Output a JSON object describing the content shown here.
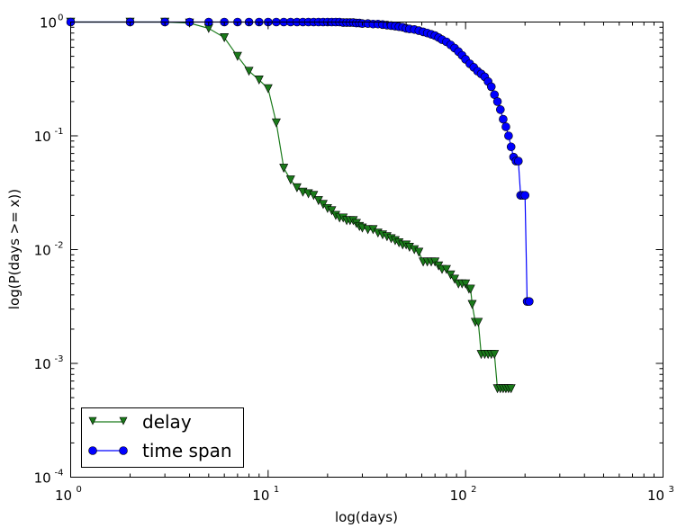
{
  "chart_data": {
    "type": "line",
    "xscale": "log",
    "yscale": "log",
    "xlim": [
      1,
      1000
    ],
    "ylim": [
      0.0001,
      1
    ],
    "xlabel": "log(days)",
    "ylabel": "log(P(days >= x))",
    "xticks": [
      {
        "value": 1,
        "base": "10",
        "exp": "0"
      },
      {
        "value": 10,
        "base": "10",
        "exp": "1"
      },
      {
        "value": 100,
        "base": "10",
        "exp": "2"
      },
      {
        "value": 1000,
        "base": "10",
        "exp": "3"
      }
    ],
    "yticks": [
      {
        "value": 1,
        "base": "10",
        "exp": "0"
      },
      {
        "value": 0.1,
        "base": "10",
        "exp": "-1"
      },
      {
        "value": 0.01,
        "base": "10",
        "exp": "-2"
      },
      {
        "value": 0.001,
        "base": "10",
        "exp": "-3"
      },
      {
        "value": 0.0001,
        "base": "10",
        "exp": "-4"
      }
    ],
    "legend_position": "lower-left",
    "series": [
      {
        "name": "delay",
        "color": "#1a7a1a",
        "marker": "triangle-down",
        "x": [
          1,
          2,
          3,
          4,
          5,
          6,
          7,
          8,
          9,
          10,
          11,
          12,
          13,
          14,
          15,
          16,
          17,
          18,
          19,
          20,
          21,
          22,
          23,
          24,
          25,
          26,
          27,
          28,
          29,
          30,
          32,
          34,
          36,
          38,
          40,
          42,
          44,
          46,
          48,
          50,
          52,
          55,
          58,
          61,
          64,
          67,
          70,
          73,
          76,
          80,
          84,
          88,
          92,
          96,
          100,
          104,
          106,
          108,
          112,
          116,
          120,
          125,
          130,
          135,
          140,
          145,
          150,
          155,
          160,
          165,
          170
        ],
        "y": [
          1,
          1,
          1,
          0.98,
          0.88,
          0.73,
          0.5,
          0.37,
          0.31,
          0.26,
          0.13,
          0.052,
          0.041,
          0.035,
          0.032,
          0.031,
          0.03,
          0.027,
          0.025,
          0.023,
          0.022,
          0.02,
          0.019,
          0.019,
          0.018,
          0.018,
          0.018,
          0.017,
          0.016,
          0.0155,
          0.015,
          0.015,
          0.014,
          0.0135,
          0.013,
          0.0125,
          0.012,
          0.0115,
          0.011,
          0.011,
          0.0105,
          0.01,
          0.0095,
          0.0078,
          0.0078,
          0.0078,
          0.0078,
          0.0072,
          0.0067,
          0.0067,
          0.006,
          0.0055,
          0.005,
          0.005,
          0.005,
          0.0045,
          0.0045,
          0.0033,
          0.0023,
          0.0023,
          0.0012,
          0.0012,
          0.0012,
          0.0012,
          0.0012,
          0.0006,
          0.0006,
          0.0006,
          0.0006,
          0.0006,
          0.0006
        ]
      },
      {
        "name": "time span",
        "color": "#0000ff",
        "marker": "circle",
        "x": [
          1,
          2,
          3,
          4,
          5,
          6,
          7,
          8,
          9,
          10,
          11,
          12,
          13,
          14,
          15,
          16,
          17,
          18,
          19,
          20,
          21,
          22,
          23,
          24,
          25,
          26,
          27,
          28,
          29,
          30,
          32,
          34,
          36,
          38,
          40,
          42,
          44,
          46,
          48,
          50,
          52,
          55,
          58,
          61,
          64,
          67,
          70,
          73,
          76,
          80,
          84,
          88,
          92,
          96,
          100,
          105,
          110,
          115,
          120,
          125,
          130,
          135,
          140,
          145,
          150,
          155,
          160,
          165,
          170,
          175,
          180,
          185,
          190,
          195,
          200,
          205,
          210
        ],
        "y": [
          1,
          1,
          1,
          1,
          1,
          1,
          1,
          1,
          1,
          1,
          1,
          1,
          1,
          1,
          1,
          1,
          1,
          1,
          1,
          1,
          1,
          1,
          1,
          0.99,
          0.99,
          0.99,
          0.99,
          0.98,
          0.98,
          0.97,
          0.97,
          0.96,
          0.96,
          0.95,
          0.94,
          0.93,
          0.92,
          0.91,
          0.9,
          0.88,
          0.87,
          0.86,
          0.84,
          0.82,
          0.8,
          0.78,
          0.76,
          0.73,
          0.7,
          0.67,
          0.63,
          0.59,
          0.55,
          0.51,
          0.47,
          0.43,
          0.4,
          0.37,
          0.35,
          0.33,
          0.3,
          0.27,
          0.23,
          0.2,
          0.17,
          0.14,
          0.12,
          0.1,
          0.08,
          0.065,
          0.06,
          0.06,
          0.03,
          0.03,
          0.03,
          0.0035,
          0.0035
        ]
      }
    ]
  }
}
